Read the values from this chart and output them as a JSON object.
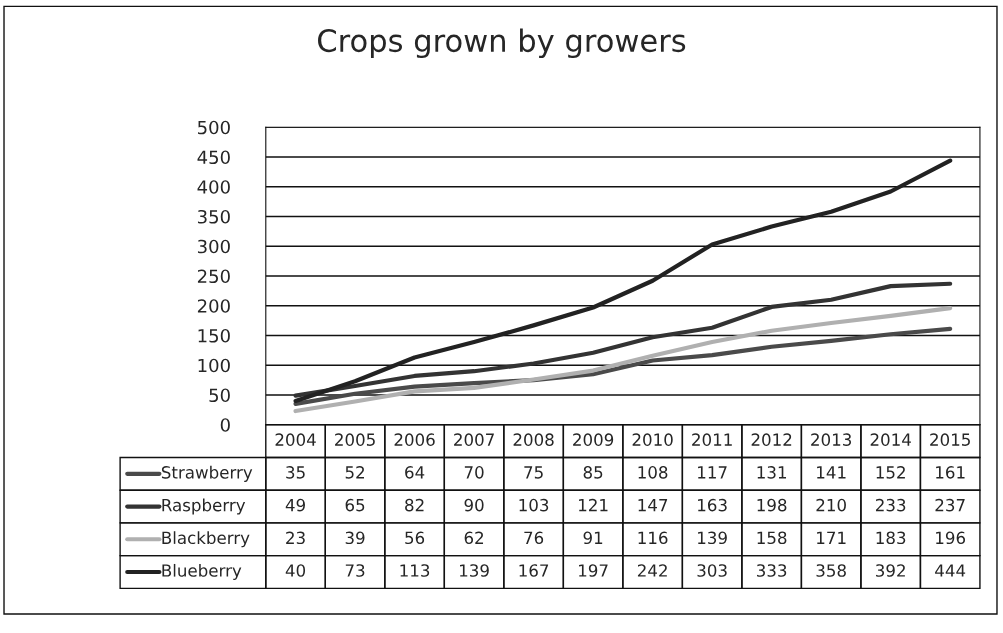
{
  "chart_data": {
    "type": "line",
    "title": "Crops grown by growers",
    "categories": [
      "2004",
      "2005",
      "2006",
      "2007",
      "2008",
      "2009",
      "2010",
      "2011",
      "2012",
      "2013",
      "2014",
      "2015"
    ],
    "series": [
      {
        "name": "Strawberry",
        "color": "#4a4a4a",
        "values": [
          35,
          52,
          64,
          70,
          75,
          85,
          108,
          117,
          131,
          141,
          152,
          161
        ]
      },
      {
        "name": "Raspberry",
        "color": "#333333",
        "values": [
          49,
          65,
          82,
          90,
          103,
          121,
          147,
          163,
          198,
          210,
          233,
          237
        ]
      },
      {
        "name": "Blackberry",
        "color": "#b0b0b0",
        "values": [
          23,
          39,
          56,
          62,
          76,
          91,
          116,
          139,
          158,
          171,
          183,
          196
        ]
      },
      {
        "name": "Blueberry",
        "color": "#222222",
        "values": [
          40,
          73,
          113,
          139,
          167,
          197,
          242,
          303,
          333,
          358,
          392,
          444
        ]
      }
    ],
    "ylim": [
      0,
      500
    ],
    "yticks": [
      0,
      50,
      100,
      150,
      200,
      250,
      300,
      350,
      400,
      450,
      500
    ],
    "grid": "y",
    "legend": "bottom",
    "data_labels": true,
    "marker": "none",
    "line_style": "solid"
  }
}
